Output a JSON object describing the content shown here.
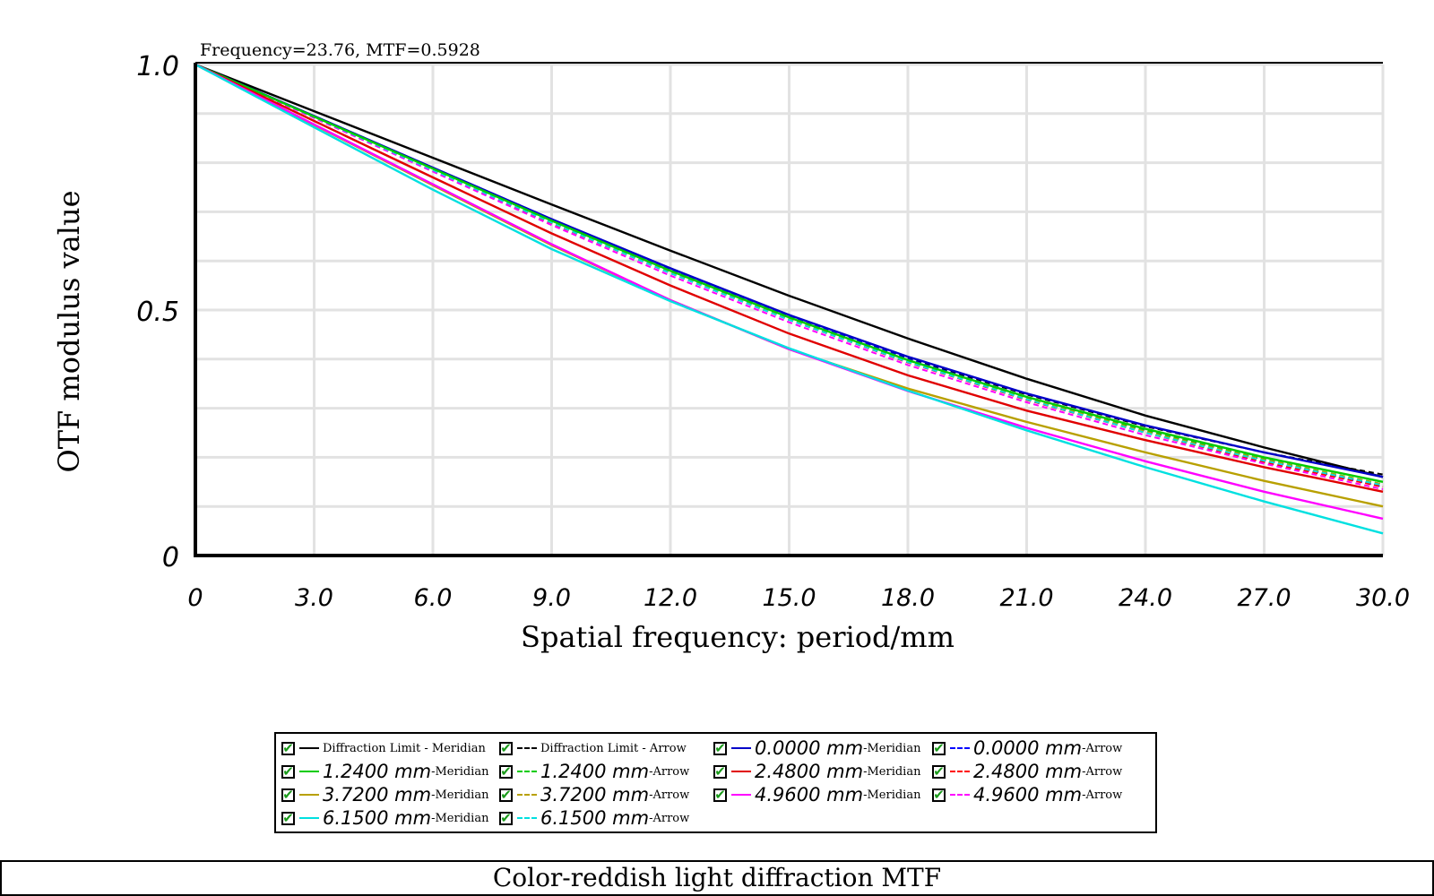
{
  "chart_data": {
    "type": "line",
    "readout": "Frequency=23.76, MTF=0.5928",
    "xlabel": "Spatial frequency: period/mm",
    "ylabel": "OTF modulus value",
    "xlim": [
      0,
      30
    ],
    "ylim": [
      0,
      1.0
    ],
    "x_ticks": [
      "0",
      "3.0",
      "6.0",
      "9.0",
      "12.0",
      "15.0",
      "18.0",
      "21.0",
      "24.0",
      "27.0",
      "30.0"
    ],
    "y_ticks": [
      "0",
      "0.5",
      "1.0"
    ],
    "grid": true,
    "x": [
      0,
      3,
      6,
      9,
      12,
      15,
      18,
      21,
      24,
      27,
      30
    ],
    "series": [
      {
        "name": "Diffraction Limit - Meridian",
        "color": "#000000",
        "dashed": false,
        "values": [
          1.0,
          0.905,
          0.81,
          0.715,
          0.621,
          0.529,
          0.442,
          0.36,
          0.285,
          0.22,
          0.16
        ]
      },
      {
        "name": "Diffraction Limit - Arrow",
        "color": "#000000",
        "dashed": true,
        "values": [
          1.0,
          0.895,
          0.79,
          0.685,
          0.584,
          0.488,
          0.402,
          0.328,
          0.263,
          0.21,
          0.165
        ]
      },
      {
        "name": "0.0000 mm",
        "suffix": "-Meridian",
        "color": "#0000c8",
        "dashed": false,
        "values": [
          1.0,
          0.895,
          0.79,
          0.685,
          0.585,
          0.49,
          0.405,
          0.33,
          0.265,
          0.21,
          0.16
        ]
      },
      {
        "name": "0.0000 mm",
        "suffix": "-Arrow",
        "color": "#0000ff",
        "dashed": true,
        "values": [
          1.0,
          0.894,
          0.788,
          0.683,
          0.582,
          0.487,
          0.4,
          0.323,
          0.255,
          0.195,
          0.14
        ]
      },
      {
        "name": "1.2400 mm",
        "suffix": "-Meridian",
        "color": "#00cc00",
        "dashed": false,
        "values": [
          1.0,
          0.894,
          0.788,
          0.682,
          0.58,
          0.485,
          0.398,
          0.323,
          0.258,
          0.2,
          0.15
        ]
      },
      {
        "name": "1.2400 mm",
        "suffix": "-Arrow",
        "color": "#00cc00",
        "dashed": true,
        "values": [
          1.0,
          0.893,
          0.786,
          0.68,
          0.578,
          0.483,
          0.396,
          0.32,
          0.254,
          0.196,
          0.145
        ]
      },
      {
        "name": "2.4800 mm",
        "suffix": "-Meridian",
        "color": "#e00000",
        "dashed": false,
        "values": [
          1.0,
          0.885,
          0.77,
          0.656,
          0.55,
          0.452,
          0.367,
          0.295,
          0.235,
          0.18,
          0.13
        ]
      },
      {
        "name": "2.4800 mm",
        "suffix": "-Arrow",
        "color": "#ff0000",
        "dashed": true,
        "values": [
          1.0,
          0.892,
          0.784,
          0.677,
          0.575,
          0.48,
          0.393,
          0.317,
          0.25,
          0.19,
          0.14
        ]
      },
      {
        "name": "3.7200 mm",
        "suffix": "-Meridian",
        "color": "#b8a000",
        "dashed": false,
        "values": [
          1.0,
          0.877,
          0.754,
          0.632,
          0.52,
          0.42,
          0.34,
          0.272,
          0.21,
          0.152,
          0.1
        ]
      },
      {
        "name": "3.7200 mm",
        "suffix": "-Arrow",
        "color": "#b8a000",
        "dashed": true,
        "values": [
          1.0,
          0.893,
          0.786,
          0.68,
          0.578,
          0.483,
          0.396,
          0.32,
          0.252,
          0.195,
          0.145
        ]
      },
      {
        "name": "4.9600 mm",
        "suffix": "-Meridian",
        "color": "#ff00ff",
        "dashed": false,
        "values": [
          1.0,
          0.878,
          0.756,
          0.634,
          0.52,
          0.42,
          0.335,
          0.26,
          0.192,
          0.13,
          0.075
        ]
      },
      {
        "name": "4.9600 mm",
        "suffix": "-Arrow",
        "color": "#ff00ff",
        "dashed": true,
        "values": [
          1.0,
          0.891,
          0.782,
          0.673,
          0.57,
          0.475,
          0.388,
          0.312,
          0.245,
          0.187,
          0.135
        ]
      },
      {
        "name": "6.1500 mm",
        "suffix": "-Meridian",
        "color": "#00e0e0",
        "dashed": false,
        "values": [
          1.0,
          0.872,
          0.745,
          0.624,
          0.518,
          0.422,
          0.336,
          0.255,
          0.18,
          0.11,
          0.045
        ]
      },
      {
        "name": "6.1500 mm",
        "suffix": "-Arrow",
        "color": "#00e0e0",
        "dashed": true,
        "values": [
          1.0,
          0.893,
          0.785,
          0.678,
          0.575,
          0.48,
          0.394,
          0.318,
          0.25,
          0.193,
          0.143
        ]
      }
    ]
  },
  "legend": {
    "items": [
      {
        "label": "Diffraction Limit - Meridian",
        "suffix": "",
        "color": "#000000",
        "dashed": false
      },
      {
        "label": "Diffraction Limit - Arrow",
        "suffix": "",
        "color": "#000000",
        "dashed": true
      },
      {
        "label": "0.0000 mm",
        "suffix": "-Meridian",
        "color": "#0000c8",
        "dashed": false
      },
      {
        "label": "0.0000 mm",
        "suffix": "-Arrow",
        "color": "#0000ff",
        "dashed": true
      },
      {
        "label": "1.2400 mm",
        "suffix": "-Meridian",
        "color": "#00cc00",
        "dashed": false
      },
      {
        "label": "1.2400 mm",
        "suffix": "-Arrow",
        "color": "#00cc00",
        "dashed": true
      },
      {
        "label": "2.4800 mm",
        "suffix": "-Meridian",
        "color": "#e00000",
        "dashed": false
      },
      {
        "label": "2.4800 mm",
        "suffix": "-Arrow",
        "color": "#ff0000",
        "dashed": true
      },
      {
        "label": "3.7200 mm",
        "suffix": "-Meridian",
        "color": "#b8a000",
        "dashed": false
      },
      {
        "label": "3.7200 mm",
        "suffix": "-Arrow",
        "color": "#b8a000",
        "dashed": true
      },
      {
        "label": "4.9600 mm",
        "suffix": "-Meridian",
        "color": "#ff00ff",
        "dashed": false
      },
      {
        "label": "4.9600 mm",
        "suffix": "-Arrow",
        "color": "#ff00ff",
        "dashed": true
      },
      {
        "label": "6.1500 mm",
        "suffix": "-Meridian",
        "color": "#00e0e0",
        "dashed": false
      },
      {
        "label": "6.1500 mm",
        "suffix": "-Arrow",
        "color": "#00e0e0",
        "dashed": true
      }
    ],
    "check_icon": "check-icon"
  },
  "caption": "Color-reddish light diffraction MTF"
}
